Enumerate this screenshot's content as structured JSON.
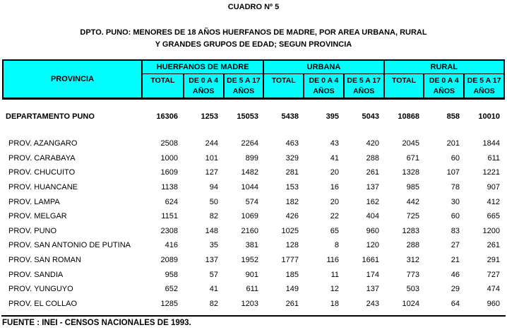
{
  "title": "CUADRO Nº 5",
  "subtitle_line1": "DPTO. PUNO: MENORES DE 18 AÑOS HUERFANOS DE MADRE, POR AREA URBANA, RURAL",
  "subtitle_line2": "Y GRANDES GRUPOS DE EDAD; SEGUN PROVINCIA",
  "colors": {
    "header_bg": "#00FFFF",
    "border": "#000000",
    "text": "#000000",
    "page_bg": "#FFFFFF"
  },
  "table": {
    "province_header": "PROVINCIA",
    "groups": [
      {
        "label": "HUERFANOS DE MADRE"
      },
      {
        "label": "URBANA"
      },
      {
        "label": "RURAL"
      }
    ],
    "subheaders": [
      {
        "line1": "TOTAL",
        "line2": ""
      },
      {
        "line1": "DE 0 A 4",
        "line2": "AÑOS"
      },
      {
        "line1": "DE 5 A 17",
        "line2": "AÑOS"
      },
      {
        "line1": "TOTAL",
        "line2": ""
      },
      {
        "line1": "DE 0 A 4",
        "line2": "AÑOS"
      },
      {
        "line1": "DE 5 A 17",
        "line2": "AÑOS"
      },
      {
        "line1": "TOTAL",
        "line2": ""
      },
      {
        "line1": "DE 0 A 4",
        "line2": "AÑOS"
      },
      {
        "line1": "DE 5 A 17",
        "line2": "AÑOS"
      }
    ],
    "department_row": {
      "label": "DEPARTAMENTO PUNO",
      "values": [
        16306,
        1253,
        15053,
        5438,
        395,
        5043,
        10868,
        858,
        10010
      ]
    },
    "rows": [
      {
        "label": "PROV. AZANGARO",
        "values": [
          2508,
          244,
          2264,
          463,
          43,
          420,
          2045,
          201,
          1844
        ]
      },
      {
        "label": "PROV. CARABAYA",
        "values": [
          1000,
          101,
          899,
          329,
          41,
          288,
          671,
          60,
          611
        ]
      },
      {
        "label": "PROV. CHUCUITO",
        "values": [
          1609,
          127,
          1482,
          281,
          20,
          261,
          1328,
          107,
          1221
        ]
      },
      {
        "label": "PROV. HUANCANE",
        "values": [
          1138,
          94,
          1044,
          153,
          16,
          137,
          985,
          78,
          907
        ]
      },
      {
        "label": "PROV. LAMPA",
        "values": [
          624,
          50,
          574,
          182,
          20,
          162,
          442,
          30,
          412
        ]
      },
      {
        "label": "PROV. MELGAR",
        "values": [
          1151,
          82,
          1069,
          426,
          22,
          404,
          725,
          60,
          665
        ]
      },
      {
        "label": "PROV. PUNO",
        "values": [
          2308,
          148,
          2160,
          1025,
          65,
          960,
          1283,
          83,
          1200
        ]
      },
      {
        "label": "PROV. SAN ANTONIO DE PUTINA",
        "values": [
          416,
          35,
          381,
          128,
          8,
          120,
          288,
          27,
          261
        ]
      },
      {
        "label": "PROV. SAN ROMAN",
        "values": [
          2089,
          137,
          1952,
          1777,
          116,
          1661,
          312,
          21,
          291
        ]
      },
      {
        "label": "PROV. SANDIA",
        "values": [
          958,
          57,
          901,
          185,
          11,
          174,
          773,
          46,
          727
        ]
      },
      {
        "label": "PROV. YUNGUYO",
        "values": [
          652,
          41,
          611,
          149,
          12,
          137,
          503,
          29,
          474
        ]
      },
      {
        "label": "PROV. EL COLLAO",
        "values": [
          1285,
          82,
          1203,
          261,
          18,
          243,
          1024,
          64,
          960
        ]
      }
    ]
  },
  "footer": "FUENTE : INEI - CENSOS NACIONALES DE 1993."
}
